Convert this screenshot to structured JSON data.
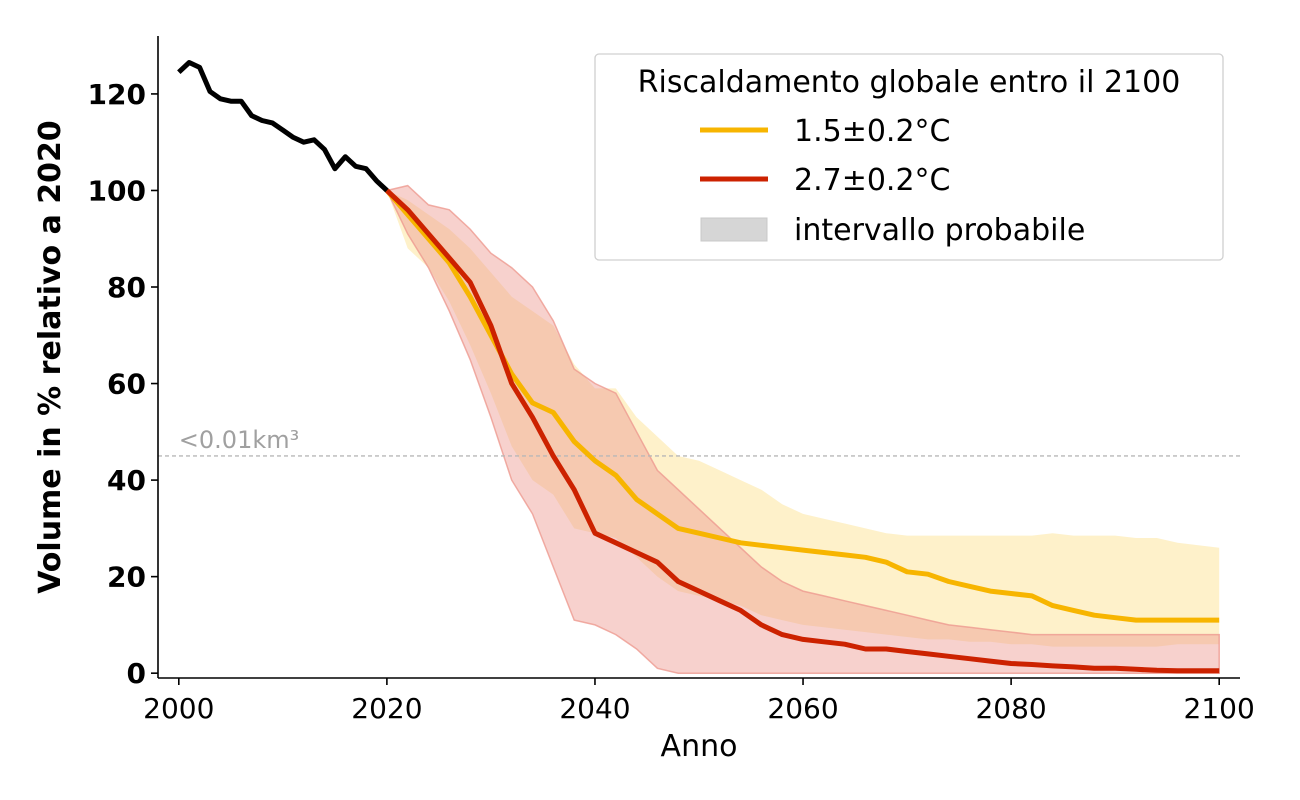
{
  "chart_data": {
    "type": "line",
    "xlabel": "Anno",
    "ylabel": "Volume in % relativo a 2020",
    "xlim": [
      1998,
      2102
    ],
    "ylim": [
      -1,
      132
    ],
    "xticks": [
      2000,
      2020,
      2040,
      2060,
      2080,
      2100
    ],
    "yticks": [
      0,
      20,
      40,
      60,
      80,
      100,
      120
    ],
    "grid": false,
    "legend": {
      "title": "Riscaldamento globale entro il 2100",
      "placement": "top-right",
      "entries": [
        "1.5±0.2°C",
        "2.7±0.2°C",
        "intervallo probabile"
      ]
    },
    "annotation": {
      "text": "<0.01km³",
      "y": 45
    },
    "colors": {
      "historical": "#000000",
      "s15": "#f7b500",
      "s15_band": "#fdeaae",
      "s27": "#cc2200",
      "s27_band": "#ee9a90",
      "legend_patch": "#d6d6d6",
      "annotation": "#a0a0a0"
    },
    "historical": {
      "x": [
        2000,
        2001,
        2002,
        2003,
        2004,
        2005,
        2006,
        2007,
        2008,
        2009,
        2010,
        2011,
        2012,
        2013,
        2014,
        2015,
        2016,
        2017,
        2018,
        2019,
        2020
      ],
      "y": [
        124.5,
        126.5,
        125.5,
        120.5,
        119,
        118.5,
        118.5,
        115.5,
        114.5,
        114,
        112.5,
        111,
        110,
        110.5,
        108.5,
        104.5,
        107,
        105,
        104.5,
        102,
        100
      ]
    },
    "series": [
      {
        "name": "1.5±0.2°C",
        "x": [
          2020,
          2022,
          2024,
          2026,
          2028,
          2030,
          2032,
          2034,
          2036,
          2038,
          2040,
          2042,
          2044,
          2046,
          2048,
          2050,
          2052,
          2054,
          2056,
          2058,
          2060,
          2062,
          2064,
          2066,
          2068,
          2070,
          2072,
          2074,
          2076,
          2078,
          2080,
          2082,
          2084,
          2086,
          2088,
          2090,
          2092,
          2094,
          2096,
          2098,
          2100
        ],
        "y": [
          100,
          95,
          90,
          85,
          78,
          70,
          62,
          56,
          54,
          48,
          44,
          41,
          36,
          33,
          30,
          29,
          28,
          27,
          26.5,
          26,
          25.5,
          25,
          24.5,
          24,
          23,
          21,
          20.5,
          19,
          18,
          17,
          16.5,
          16,
          14,
          13,
          12,
          11.5,
          11,
          11,
          11,
          11,
          11
        ],
        "lower": [
          100,
          88,
          84,
          77,
          68,
          58,
          47,
          40,
          37,
          30,
          29,
          28,
          24,
          20,
          17,
          16,
          15,
          14,
          12,
          11,
          10,
          9.5,
          9,
          8.5,
          8,
          7.5,
          7,
          7,
          6.5,
          6.5,
          6,
          6,
          5.5,
          5.5,
          5.5,
          5.5,
          5.5,
          5.5,
          6,
          6,
          6
        ],
        "upper": [
          100,
          98,
          95,
          92,
          88,
          83,
          78,
          75,
          72,
          64,
          59,
          59,
          53,
          49,
          45,
          44,
          42,
          40,
          38,
          35,
          33,
          32,
          31,
          30,
          29,
          28.5,
          28.5,
          28.5,
          28.5,
          28.5,
          28.5,
          28.5,
          29,
          28.5,
          28.5,
          28.5,
          28,
          28,
          27,
          26.5,
          26
        ]
      },
      {
        "name": "2.7±0.2°C",
        "x": [
          2020,
          2022,
          2024,
          2026,
          2028,
          2030,
          2032,
          2034,
          2036,
          2038,
          2040,
          2042,
          2044,
          2046,
          2048,
          2050,
          2052,
          2054,
          2056,
          2058,
          2060,
          2062,
          2064,
          2066,
          2068,
          2070,
          2072,
          2074,
          2076,
          2078,
          2080,
          2082,
          2084,
          2086,
          2088,
          2090,
          2092,
          2094,
          2096,
          2098,
          2100
        ],
        "y": [
          100,
          96,
          91,
          86,
          81,
          72,
          60,
          53,
          45,
          38,
          29,
          27,
          25,
          23,
          19,
          17,
          15,
          13,
          10,
          8,
          7,
          6.5,
          6,
          5,
          5,
          4.5,
          4,
          3.5,
          3,
          2.5,
          2,
          1.8,
          1.5,
          1.3,
          1,
          1,
          0.8,
          0.6,
          0.5,
          0.5,
          0.5
        ],
        "lower": [
          100,
          91,
          84,
          75,
          65,
          53,
          40,
          33,
          22,
          11,
          10,
          8,
          5,
          1,
          0,
          0,
          0,
          0,
          0,
          0,
          0,
          0,
          0,
          0,
          0,
          0,
          0,
          0,
          0,
          0,
          0,
          0,
          0,
          0,
          0,
          0,
          0,
          0,
          0,
          0,
          0
        ],
        "upper": [
          100,
          101,
          97,
          96,
          92,
          87,
          84,
          80,
          73,
          63,
          60,
          58,
          50,
          42,
          38,
          34,
          30,
          26,
          22,
          19,
          17,
          16,
          15,
          14,
          13,
          12,
          11,
          10,
          9.5,
          9,
          8.5,
          8,
          8,
          8,
          8,
          8,
          8,
          8,
          8,
          8,
          8
        ]
      }
    ]
  }
}
